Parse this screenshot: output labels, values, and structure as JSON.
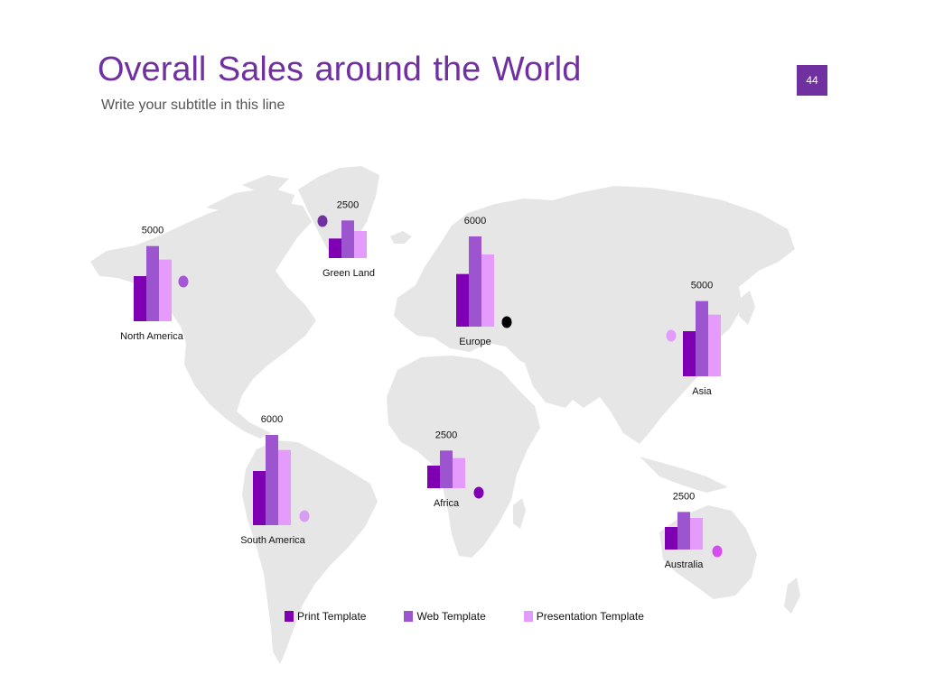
{
  "slide": {
    "title": "Overall Sales around the World",
    "subtitle": "Write your subtitle in this line",
    "page_number": "44"
  },
  "colors": {
    "accent": "#7030a0",
    "print": "#7f00b2",
    "web": "#9d55cf",
    "presentation": "#e49bfb",
    "map_land": "#e6e6e6"
  },
  "chart_data": {
    "type": "bar",
    "title": "Overall Sales around the World",
    "legend_position": "bottom",
    "series": [
      {
        "name": "Print Template",
        "color": "#7f00b2"
      },
      {
        "name": "Web Template",
        "color": "#9d55cf"
      },
      {
        "name": "Presentation Template",
        "color": "#e49bfb"
      }
    ],
    "regions": [
      {
        "name": "North America",
        "label": "5000",
        "values": [
          3000,
          5000,
          4100
        ],
        "dot_color": "#a356d6"
      },
      {
        "name": "Green Land",
        "label": "2500",
        "values": [
          1300,
          2500,
          1800
        ],
        "dot_color": "#7030a0"
      },
      {
        "name": "Europe",
        "label": "6000",
        "values": [
          3500,
          6000,
          4800
        ],
        "dot_color": "#000000"
      },
      {
        "name": "Asia",
        "label": "5000",
        "values": [
          3000,
          5000,
          4100
        ],
        "dot_color": "#e49bfb"
      },
      {
        "name": "South America",
        "label": "6000",
        "values": [
          3600,
          6000,
          5000
        ],
        "dot_color": "#d89df0"
      },
      {
        "name": "Africa",
        "label": "2500",
        "values": [
          1500,
          2500,
          2000
        ],
        "dot_color": "#7f00b2"
      },
      {
        "name": "Australia",
        "label": "2500",
        "values": [
          1500,
          2500,
          2100
        ],
        "dot_color": "#d64ef0"
      }
    ]
  }
}
